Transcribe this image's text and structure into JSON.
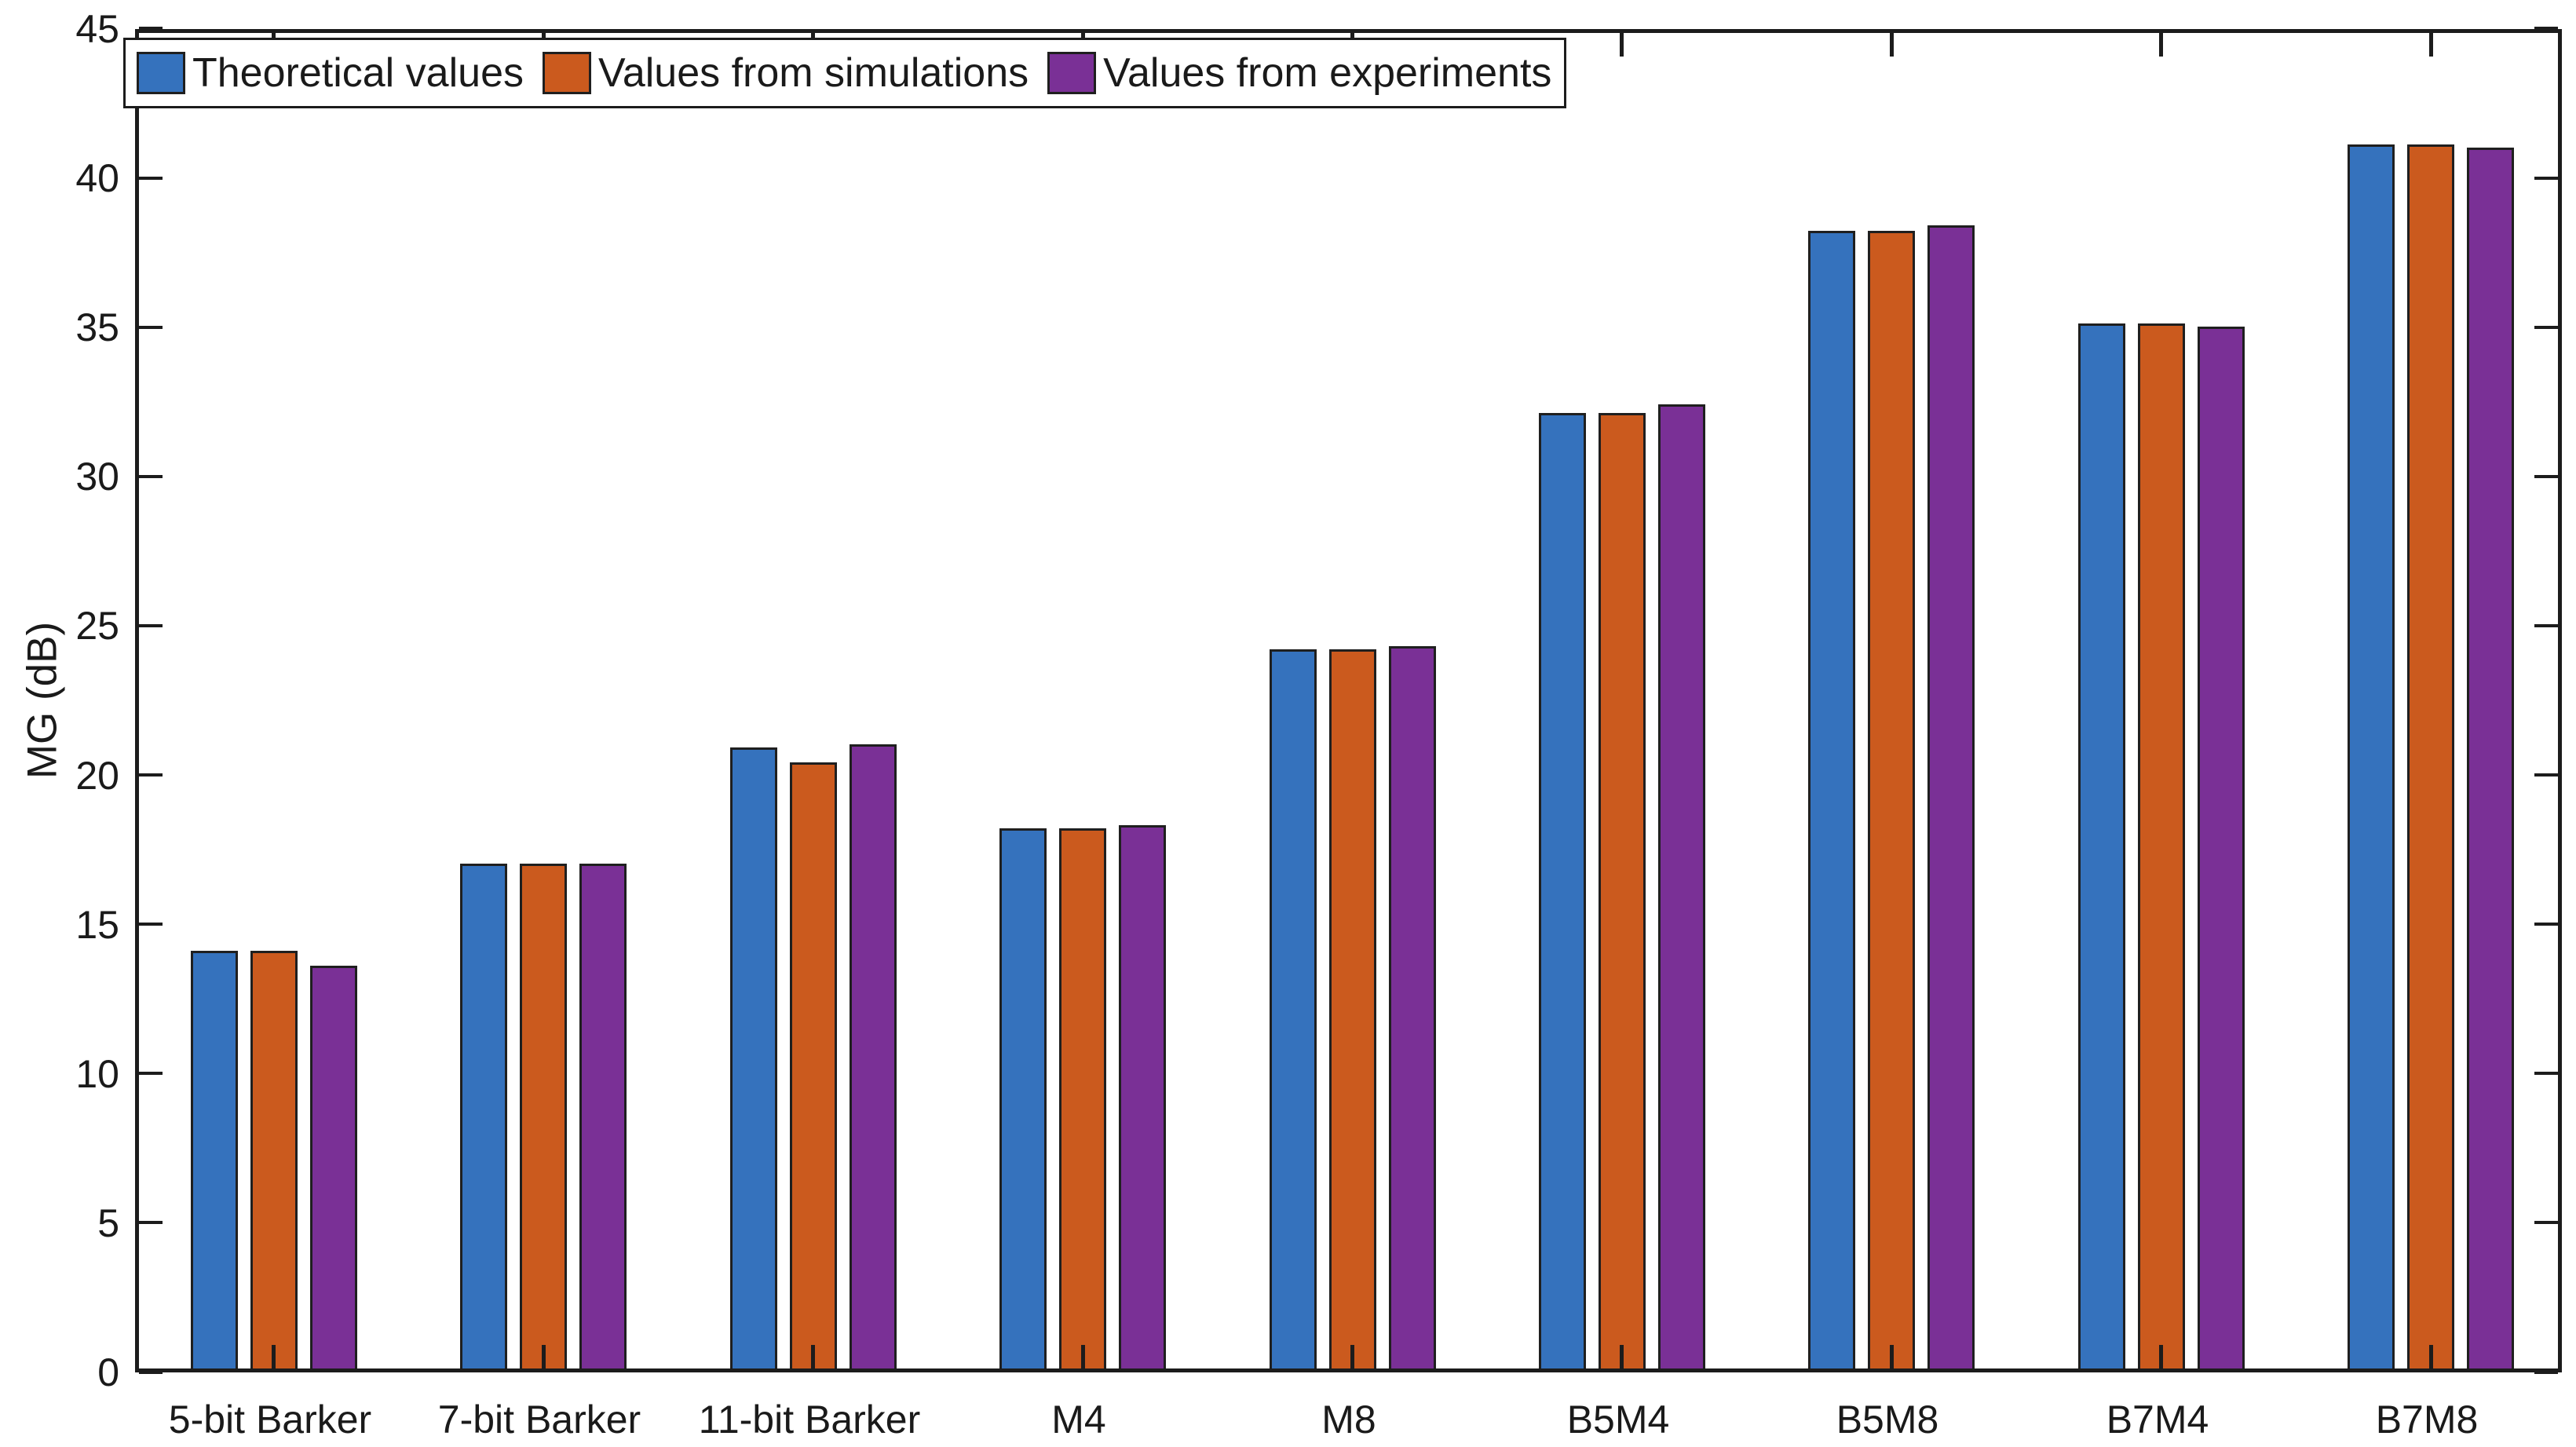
{
  "figure": {
    "background": "#ffffff",
    "axis_color": "#1c1c1c",
    "bar_edge_color": "#1f1f1f"
  },
  "legend": {
    "items": [
      {
        "label": "Theoretical values",
        "color": "#3572BD"
      },
      {
        "label": "Values from simulations",
        "color": "#CB5A1E"
      },
      {
        "label": "Values from experiments",
        "color": "#7A3096"
      }
    ],
    "position": "top-left-inside",
    "orientation": "horizontal"
  },
  "chart_data": {
    "type": "bar",
    "title": "",
    "xlabel": "",
    "ylabel": "MG (dB)",
    "ylim": [
      0,
      45
    ],
    "yticks": [
      0,
      5,
      10,
      15,
      20,
      25,
      30,
      35,
      40,
      45
    ],
    "grid": false,
    "legend_position": "top-left-inside",
    "categories": [
      "5-bit Barker",
      "7-bit Barker",
      "11-bit Barker",
      "M4",
      "M8",
      "B5M4",
      "B5M8",
      "B7M4",
      "B7M8"
    ],
    "series": [
      {
        "name": "Theoretical values",
        "color": "#3572BD",
        "values": [
          14.0,
          16.9,
          20.8,
          18.1,
          24.1,
          32.0,
          38.1,
          35.0,
          41.0
        ]
      },
      {
        "name": "Values from simulations",
        "color": "#CB5A1E",
        "values": [
          14.0,
          16.9,
          20.3,
          18.1,
          24.1,
          32.0,
          38.1,
          35.0,
          41.0
        ]
      },
      {
        "name": "Values from experiments",
        "color": "#7A3096",
        "values": [
          13.5,
          16.9,
          20.9,
          18.2,
          24.2,
          32.3,
          38.3,
          34.9,
          40.9
        ]
      }
    ]
  }
}
